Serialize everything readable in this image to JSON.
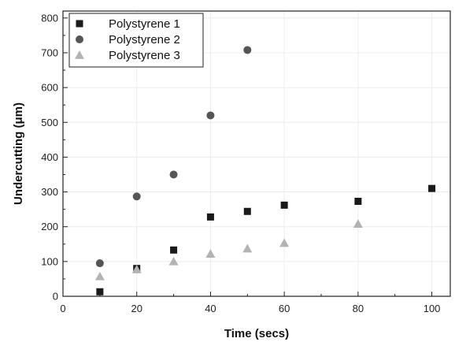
{
  "chart_data": {
    "type": "scatter",
    "title": "",
    "xlabel": "Time (secs)",
    "ylabel": "Undercutting (μm)",
    "xlim": [
      0,
      105
    ],
    "ylim": [
      0,
      820
    ],
    "xticks": [
      0,
      20,
      40,
      60,
      80,
      100
    ],
    "yticks": [
      0,
      100,
      200,
      300,
      400,
      500,
      600,
      700,
      800
    ],
    "xtick_labels": [
      "0",
      "20",
      "40",
      "60",
      "80",
      "100"
    ],
    "ytick_labels": [
      "0",
      "100",
      "200",
      "300",
      "400",
      "500",
      "600",
      "700",
      "800"
    ],
    "grid": true,
    "legend_position": "top-left",
    "series": [
      {
        "name": "Polystyrene 1",
        "marker": "square",
        "color": "#1a1a1a",
        "x": [
          10,
          20,
          30,
          40,
          50,
          60,
          80,
          100
        ],
        "y": [
          13,
          80,
          133,
          228,
          244,
          262,
          273,
          310
        ]
      },
      {
        "name": "Polystyrene 2",
        "marker": "circle",
        "color": "#555555",
        "x": [
          10,
          20,
          30,
          40,
          50
        ],
        "y": [
          95,
          287,
          350,
          520,
          708
        ]
      },
      {
        "name": "Polystyrene 3",
        "marker": "triangle",
        "color": "#b3b3b3",
        "x": [
          10,
          20,
          30,
          40,
          50,
          60,
          80
        ],
        "y": [
          57,
          77,
          100,
          122,
          137,
          153,
          208
        ]
      }
    ]
  }
}
